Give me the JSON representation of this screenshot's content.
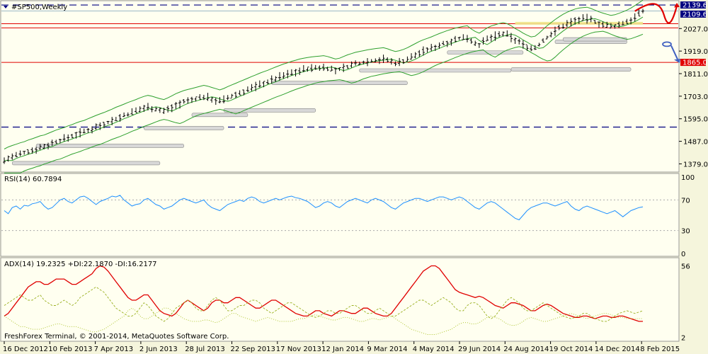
{
  "chart_data": [
    {
      "type": "ohlc",
      "panel": "price",
      "title": "#SP500,Weekly",
      "y_range": [
        1350,
        2150
      ],
      "y_tick_labels": [
        "2139.6",
        "2109.6",
        "2027.0",
        "1919.0",
        "1865.0",
        "1811.0",
        "1703.0",
        "1595.0",
        "1487.0",
        "1379.0"
      ],
      "highlighted_prices": [
        {
          "label": "2139.6",
          "color": "#000080"
        },
        {
          "label": "2109.6",
          "color": "#000080"
        },
        {
          "label": "1865.0",
          "color": "#e00000"
        }
      ],
      "trend_path": [
        1395,
        1405,
        1412,
        1418,
        1425,
        1430,
        1438,
        1444,
        1451,
        1458,
        1462,
        1470,
        1478,
        1486,
        1492,
        1498,
        1506,
        1512,
        1520,
        1527,
        1532,
        1540,
        1548,
        1556,
        1563,
        1570,
        1578,
        1586,
        1595,
        1602,
        1610,
        1618,
        1625,
        1632,
        1640,
        1647,
        1652,
        1648,
        1642,
        1636,
        1632,
        1640,
        1650,
        1660,
        1668,
        1675,
        1680,
        1685,
        1690,
        1695,
        1700,
        1696,
        1690,
        1684,
        1678,
        1685,
        1694,
        1702,
        1710,
        1718,
        1726,
        1734,
        1742,
        1750,
        1758,
        1765,
        1772,
        1780,
        1788,
        1795,
        1802,
        1808,
        1815,
        1820,
        1826,
        1830,
        1833,
        1836,
        1838,
        1840,
        1842,
        1838,
        1832,
        1826,
        1830,
        1838,
        1846,
        1852,
        1858,
        1862,
        1866,
        1870,
        1873,
        1876,
        1878,
        1880,
        1875,
        1868,
        1862,
        1866,
        1872,
        1880,
        1890,
        1900,
        1910,
        1918,
        1925,
        1932,
        1940,
        1948,
        1955,
        1962,
        1968,
        1974,
        1978,
        1982,
        1985,
        1970,
        1958,
        1950,
        1962,
        1975,
        1984,
        1990,
        1996,
        2000,
        1995,
        1985,
        1972,
        1962,
        1950,
        1940,
        1932,
        1935,
        1950,
        1968,
        1985,
        2000,
        2015,
        2028,
        2040,
        2050,
        2058,
        2065,
        2070,
        2072,
        2074,
        2068,
        2060,
        2052,
        2046,
        2040,
        2035,
        2038,
        2045,
        2052,
        2060,
        2070,
        2082,
        2095,
        2108
      ],
      "support_zones": [
        {
          "price": 1384,
          "from_week": 2,
          "to_week": 39
        },
        {
          "price": 1467,
          "from_week": 8,
          "to_week": 45
        },
        {
          "price": 1552,
          "from_week": 35,
          "to_week": 55
        },
        {
          "price": 1615,
          "from_week": 47,
          "to_week": 61
        },
        {
          "price": 1637,
          "from_week": 55,
          "to_week": 78
        },
        {
          "price": 1768,
          "from_week": 67,
          "to_week": 101
        },
        {
          "price": 1828,
          "from_week": 89,
          "to_week": 127
        },
        {
          "price": 1833,
          "from_week": 127,
          "to_week": 157
        },
        {
          "price": 1914,
          "from_week": 111,
          "to_week": 130
        },
        {
          "price": 1965,
          "from_week": 138,
          "to_week": 156
        },
        {
          "price": 1977,
          "from_week": 140,
          "to_week": 156
        }
      ],
      "horizontal_lines": [
        {
          "price": 2139.6,
          "style": "dashed",
          "color": "#000080"
        },
        {
          "price": 1555,
          "style": "dashed",
          "color": "#000080"
        },
        {
          "price": 2050,
          "style": "solid",
          "color": "#e00000"
        },
        {
          "price": 2030,
          "style": "solid",
          "color": "#e00000"
        },
        {
          "price": 1865,
          "style": "solid",
          "color": "#e00000"
        },
        {
          "price": 2111,
          "style": "solid",
          "color": "#9db8c8"
        }
      ],
      "indicator": "Bollinger bands"
    },
    {
      "type": "line",
      "panel": "rsi",
      "label": "RSI(14) 60.7894",
      "y_range": [
        0,
        100
      ],
      "levels": [
        30,
        70
      ],
      "y_tick_labels": [
        "100",
        "70",
        "30",
        "0"
      ],
      "color": "#1e90ff",
      "values": [
        56,
        52,
        60,
        62,
        58,
        63,
        62,
        65,
        66,
        68,
        62,
        58,
        60,
        65,
        70,
        72,
        68,
        66,
        70,
        74,
        75,
        72,
        68,
        64,
        68,
        70,
        72,
        75,
        74,
        76,
        70,
        66,
        62,
        64,
        65,
        70,
        72,
        68,
        64,
        62,
        58,
        60,
        62,
        66,
        70,
        72,
        70,
        68,
        66,
        68,
        70,
        64,
        60,
        58,
        56,
        60,
        64,
        66,
        68,
        70,
        68,
        72,
        74,
        72,
        68,
        66,
        68,
        70,
        72,
        70,
        72,
        74,
        75,
        73,
        72,
        70,
        68,
        64,
        60,
        62,
        66,
        68,
        66,
        62,
        60,
        64,
        68,
        70,
        72,
        70,
        68,
        66,
        70,
        72,
        70,
        68,
        64,
        60,
        58,
        62,
        66,
        68,
        70,
        72,
        72,
        70,
        68,
        70,
        72,
        74,
        74,
        72,
        70,
        72,
        74,
        72,
        68,
        64,
        60,
        58,
        62,
        66,
        68,
        66,
        62,
        58,
        54,
        50,
        46,
        44,
        50,
        56,
        60,
        62,
        64,
        66,
        66,
        64,
        62,
        64,
        66,
        68,
        62,
        58,
        56,
        60,
        62,
        60,
        58,
        56,
        54,
        52,
        54,
        56,
        52,
        48,
        52,
        56,
        58,
        60,
        61
      ]
    },
    {
      "type": "line",
      "panel": "adx",
      "label": "ADX(14) 19.2325 +DI:22.1870 -DI:16.2177",
      "y_range": [
        0,
        60
      ],
      "y_tick_labels": [
        "56",
        "2"
      ],
      "series": [
        {
          "color": "#e00000",
          "style": "solid",
          "values": [
            18,
            20,
            24,
            28,
            32,
            36,
            40,
            42,
            44,
            44,
            42,
            42,
            44,
            46,
            46,
            46,
            44,
            42,
            42,
            44,
            46,
            48,
            50,
            54,
            56,
            55,
            52,
            48,
            44,
            40,
            36,
            32,
            30,
            30,
            32,
            34,
            34,
            30,
            26,
            22,
            20,
            19,
            18,
            20,
            24,
            28,
            30,
            28,
            26,
            24,
            22,
            24,
            28,
            30,
            30,
            28,
            28,
            30,
            32,
            32,
            30,
            28,
            26,
            24,
            24,
            26,
            28,
            30,
            30,
            28,
            26,
            24,
            22,
            20,
            19,
            18,
            18,
            20,
            22,
            22,
            20,
            19,
            18,
            20,
            22,
            22,
            21,
            20,
            20,
            22,
            24,
            24,
            22,
            20,
            19,
            18,
            18,
            20,
            24,
            28,
            32,
            36,
            40,
            44,
            48,
            52,
            54,
            56,
            56,
            54,
            50,
            46,
            42,
            38,
            36,
            35,
            34,
            33,
            32,
            33,
            32,
            30,
            28,
            26,
            25,
            24,
            26,
            28,
            28,
            27,
            26,
            24,
            22,
            22,
            24,
            26,
            27,
            26,
            24,
            22,
            20,
            19,
            18,
            17,
            17,
            18,
            18,
            17,
            16,
            17,
            18,
            18,
            17,
            17,
            18,
            18,
            17,
            16,
            15,
            14,
            14
          ]
        },
        {
          "color": "#9ab020",
          "style": "dashed",
          "values": [
            26,
            28,
            30,
            32,
            34,
            32,
            30,
            30,
            32,
            34,
            30,
            28,
            26,
            26,
            28,
            30,
            28,
            26,
            28,
            32,
            34,
            36,
            38,
            40,
            38,
            36,
            32,
            28,
            24,
            22,
            20,
            18,
            18,
            20,
            24,
            28,
            26,
            22,
            18,
            16,
            14,
            16,
            20,
            24,
            26,
            28,
            30,
            28,
            24,
            22,
            22,
            26,
            30,
            32,
            30,
            26,
            22,
            22,
            24,
            26,
            26,
            28,
            30,
            30,
            28,
            24,
            22,
            20,
            22,
            24,
            26,
            28,
            28,
            26,
            24,
            22,
            20,
            18,
            17,
            18,
            20,
            22,
            22,
            20,
            20,
            22,
            24,
            26,
            26,
            24,
            22,
            20,
            20,
            22,
            24,
            22,
            20,
            18,
            18,
            20,
            22,
            24,
            26,
            28,
            30,
            30,
            28,
            26,
            28,
            30,
            32,
            30,
            28,
            24,
            22,
            22,
            26,
            28,
            28,
            26,
            22,
            18,
            16,
            18,
            22,
            26,
            30,
            32,
            30,
            28,
            24,
            22,
            22,
            24,
            26,
            28,
            26,
            24,
            22,
            20,
            18,
            17,
            16,
            17,
            18,
            20,
            20,
            18,
            16,
            15,
            14,
            14,
            16,
            18,
            20,
            21,
            22,
            21,
            20,
            21,
            22
          ]
        },
        {
          "color": "#a8c020",
          "style": "dotted",
          "values": [
            18,
            16,
            14,
            12,
            10,
            10,
            9,
            8,
            8,
            8,
            9,
            10,
            11,
            12,
            12,
            11,
            10,
            10,
            10,
            9,
            8,
            7,
            6,
            6,
            7,
            8,
            10,
            12,
            14,
            16,
            18,
            22,
            24,
            22,
            18,
            16,
            16,
            18,
            20,
            22,
            24,
            24,
            22,
            20,
            18,
            16,
            15,
            14,
            14,
            14,
            15,
            15,
            14,
            13,
            14,
            16,
            18,
            20,
            20,
            18,
            17,
            16,
            15,
            14,
            15,
            16,
            17,
            16,
            15,
            14,
            14,
            14,
            14,
            15,
            16,
            16,
            17,
            18,
            19,
            18,
            17,
            16,
            15,
            15,
            16,
            17,
            17,
            16,
            15,
            14,
            14,
            15,
            16,
            16,
            15,
            16,
            17,
            18,
            16,
            14,
            12,
            10,
            8,
            7,
            6,
            5,
            4,
            4,
            4,
            5,
            6,
            7,
            8,
            10,
            12,
            13,
            13,
            12,
            12,
            13,
            15,
            17,
            18,
            17,
            16,
            14,
            12,
            11,
            11,
            12,
            14,
            16,
            17,
            16,
            15,
            14,
            14,
            15,
            16,
            17,
            18,
            19,
            20,
            19,
            18,
            17,
            16,
            17,
            18,
            19,
            20,
            20,
            19,
            18,
            17,
            17,
            16,
            16,
            16,
            16,
            16
          ]
        }
      ]
    }
  ],
  "x_axis": {
    "labels": [
      "16 Dec 2012",
      "10 Feb 2013",
      "7 Apr 2013",
      "2 Jun 2013",
      "28 Jul 2013",
      "22 Sep 2013",
      "17 Nov 2013",
      "12 Jan 2014",
      "9 Mar 2014",
      "4 May 2014",
      "29 Jun 2014",
      "24 Aug 2014",
      "19 Oct 2014",
      "14 Dec 2014",
      "8 Feb 2015"
    ]
  },
  "forecast": {
    "up_color": "#e00000",
    "down_color": "#4060c0"
  },
  "footer": "FreshForex Terminal, © 2001-2014, MetaQuotes Software Corp."
}
